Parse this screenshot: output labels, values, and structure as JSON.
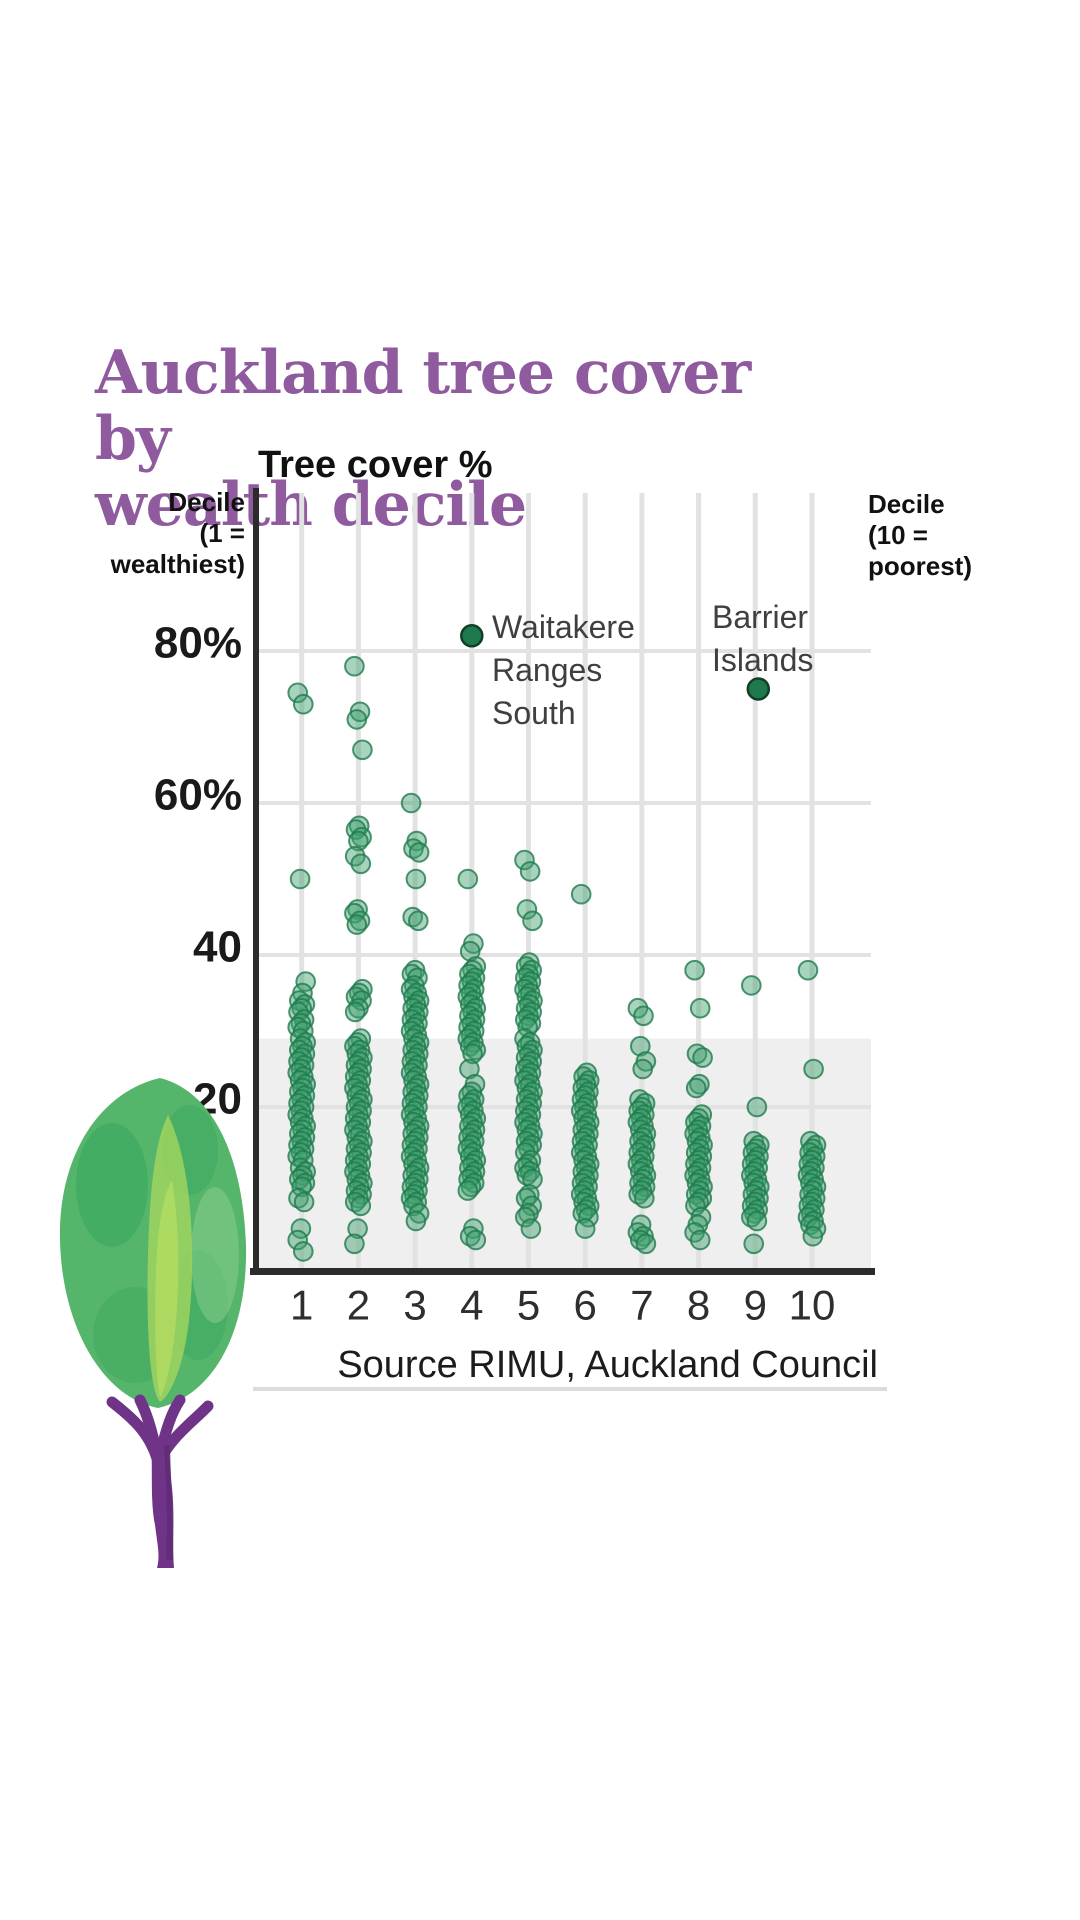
{
  "ui": {
    "title_lines": [
      "Auckland tree cover by",
      "wealth decile"
    ],
    "y_axis_title": "Tree cover %",
    "left_axis_label": [
      "Decile",
      "(1 =",
      "wealthiest)"
    ],
    "right_axis_label": [
      "Decile",
      "(10 =",
      "poorest)"
    ],
    "annotations": [
      {
        "lines": [
          "Waitakere",
          "Ranges",
          "South"
        ]
      },
      {
        "lines": [
          "Barrier",
          "Islands"
        ]
      }
    ],
    "source": "Source RIMU, Auckland Council"
  },
  "colors": {
    "title": "#8f5a9e",
    "dot_fill": "rgba(62,160,108,0.45)",
    "dot_stroke": "rgba(31,122,77,0.8)",
    "highlight_dot_fill": "#1e7a4c",
    "highlight_dot_stroke": "#123d27",
    "band": "#efefef",
    "gridline": "#e2e2e2",
    "axis": "#2b2b2b",
    "y_tick_color": "#1a1a1a",
    "x_tick_color": "#2e2e2e"
  },
  "chart_data": {
    "type": "scatter",
    "title": "Auckland tree cover by wealth decile",
    "xlabel": "Wealth decile (1 = wealthiest, 10 = poorest)",
    "ylabel": "Tree cover %",
    "x_ticks": [
      "1",
      "2",
      "3",
      "4",
      "5",
      "6",
      "7",
      "8",
      "9",
      "10"
    ],
    "y_ticks": [
      {
        "label": "80%",
        "value": 80
      },
      {
        "label": "60%",
        "value": 60
      },
      {
        "label": "40",
        "value": 40
      },
      {
        "label": "20",
        "value": 20
      }
    ],
    "ylim": [
      0,
      101
    ],
    "grid": "on",
    "shaded_band": {
      "from_percent": 0,
      "to_percent": 29
    },
    "annotations": [
      {
        "label": "Waitakere Ranges South",
        "decile": 4,
        "value": 82
      },
      {
        "label": "Barrier Islands",
        "decile": 9,
        "value": 75
      }
    ],
    "series": [
      {
        "decile": 1,
        "values": [
          74.5,
          73,
          50,
          36.5,
          35,
          34,
          33.5,
          33,
          32.5,
          31.5,
          31,
          30.5,
          30,
          29,
          28.5,
          28,
          27.5,
          27,
          26.5,
          26,
          25.5,
          25,
          24.5,
          24,
          23.5,
          23,
          22.5,
          22,
          21.5,
          21,
          20.5,
          20,
          19.5,
          19,
          18.5,
          18,
          17.5,
          17,
          16.5,
          16,
          15.5,
          15,
          14.5,
          14,
          13.5,
          13,
          12,
          11.5,
          11,
          10.5,
          10,
          9.5,
          8,
          7.5,
          4,
          2.5,
          1
        ]
      },
      {
        "decile": 2,
        "values": [
          78,
          72,
          71,
          67,
          57,
          56.5,
          55.5,
          55,
          53,
          52,
          46,
          45.5,
          44.5,
          44,
          35.5,
          35,
          34.5,
          34,
          33,
          32.5,
          29,
          28.5,
          28,
          27.5,
          27,
          26.5,
          26,
          25.5,
          25,
          24.5,
          24,
          23.5,
          23,
          22.5,
          22,
          21.5,
          21,
          20.5,
          20,
          19.5,
          19,
          18.5,
          18,
          17.5,
          17,
          16.5,
          16,
          15.5,
          15,
          14.5,
          14,
          13.5,
          13,
          12.5,
          12,
          11.5,
          11,
          10.5,
          10,
          9.5,
          9,
          8.5,
          8,
          7.5,
          7,
          4,
          2
        ]
      },
      {
        "decile": 3,
        "values": [
          60,
          55,
          54,
          53.5,
          50,
          45,
          44.5,
          38,
          37.5,
          37,
          36,
          35.5,
          35,
          34.5,
          34,
          33.5,
          33,
          32.5,
          32,
          31.5,
          31,
          30.5,
          30,
          29.5,
          29,
          28.5,
          28,
          27.5,
          27,
          26.5,
          26,
          25.5,
          25,
          24.5,
          24,
          23.5,
          23,
          22.5,
          22,
          21.5,
          21,
          20.5,
          20,
          19.5,
          19,
          18.5,
          18,
          17.5,
          17,
          16.5,
          16,
          15.5,
          15,
          14.5,
          14,
          13.5,
          13,
          12.5,
          12,
          11.5,
          11,
          10.5,
          10,
          9.5,
          9,
          8.5,
          8,
          7.5,
          7,
          6,
          5
        ]
      },
      {
        "decile": 4,
        "values": [
          50,
          41.5,
          40.5,
          38.5,
          38,
          37.5,
          37,
          36.5,
          36,
          35.5,
          35,
          34.5,
          34,
          33.5,
          33,
          32.5,
          32,
          31.5,
          31,
          30.5,
          30,
          29.5,
          29,
          28.5,
          28,
          27.5,
          27,
          25,
          23,
          22,
          21.5,
          21,
          20.5,
          20,
          19.5,
          19,
          18.5,
          18,
          17.5,
          17,
          16.5,
          16,
          15.5,
          15,
          14.5,
          14,
          13.5,
          13,
          12.5,
          12,
          11.5,
          11,
          10.5,
          10,
          9.5,
          9,
          4,
          3,
          2.5
        ]
      },
      {
        "decile": 5,
        "values": [
          52.5,
          51,
          46,
          44.5,
          39,
          38.5,
          38,
          37.5,
          37,
          36.5,
          36,
          35.5,
          35,
          34.5,
          34,
          33.5,
          33,
          32.5,
          32,
          31.5,
          31,
          30.5,
          29,
          28.5,
          28,
          27.5,
          27,
          26.5,
          26,
          25.5,
          25,
          24.5,
          24,
          23.5,
          23,
          22.5,
          22,
          21.5,
          21,
          20.5,
          20,
          19.5,
          19,
          18.5,
          18,
          17.5,
          17,
          16.5,
          16,
          15.5,
          15,
          14.5,
          14,
          13,
          12.5,
          12,
          11.5,
          11,
          10.5,
          8.5,
          8,
          7,
          6,
          5.5,
          4
        ]
      },
      {
        "decile": 6,
        "values": [
          48,
          24.5,
          24,
          23.5,
          23,
          22.5,
          22,
          21.5,
          21,
          20.5,
          20,
          19.5,
          19,
          18.5,
          18,
          17.5,
          17,
          16.5,
          16,
          15.5,
          15,
          14.5,
          14,
          13.5,
          13,
          12.5,
          12,
          11.5,
          11,
          10.5,
          10,
          9.5,
          9,
          8.5,
          8,
          7.5,
          7,
          6.5,
          6,
          5.5,
          4
        ]
      },
      {
        "decile": 7,
        "values": [
          33,
          32,
          28,
          26,
          25,
          21,
          20.5,
          20,
          19.5,
          19,
          18.5,
          18,
          17.5,
          17,
          16.5,
          16,
          15.5,
          15,
          14.5,
          14,
          13.5,
          13,
          12.5,
          12,
          11.5,
          11,
          10.5,
          10,
          9.5,
          9,
          8.5,
          8,
          4.5,
          3.5,
          3,
          2.5,
          2
        ]
      },
      {
        "decile": 8,
        "values": [
          38,
          33,
          27,
          26.5,
          23,
          22.5,
          19,
          18.5,
          18,
          17.5,
          17,
          16.5,
          16,
          15.5,
          15,
          14.5,
          14,
          13.5,
          13,
          12.5,
          12,
          11.5,
          11,
          10.5,
          10,
          9.5,
          9,
          8.5,
          8,
          7.5,
          7,
          5.5,
          4.5,
          3.5,
          2.5
        ]
      },
      {
        "decile": 9,
        "values": [
          36,
          20,
          15.5,
          15,
          14.5,
          14,
          13.5,
          13,
          12.5,
          12,
          11.5,
          11,
          10.5,
          10,
          9.5,
          9,
          8.5,
          8,
          7.5,
          7,
          6.5,
          6,
          5.5,
          5,
          2
        ]
      },
      {
        "decile": 10,
        "values": [
          38,
          25,
          15.5,
          15,
          14.5,
          14,
          13.5,
          13,
          12.5,
          12,
          11.5,
          11,
          10.5,
          10,
          9.5,
          9,
          8.5,
          8,
          7.5,
          7,
          6.5,
          6,
          5.5,
          5,
          4.5,
          4,
          3
        ]
      }
    ]
  }
}
